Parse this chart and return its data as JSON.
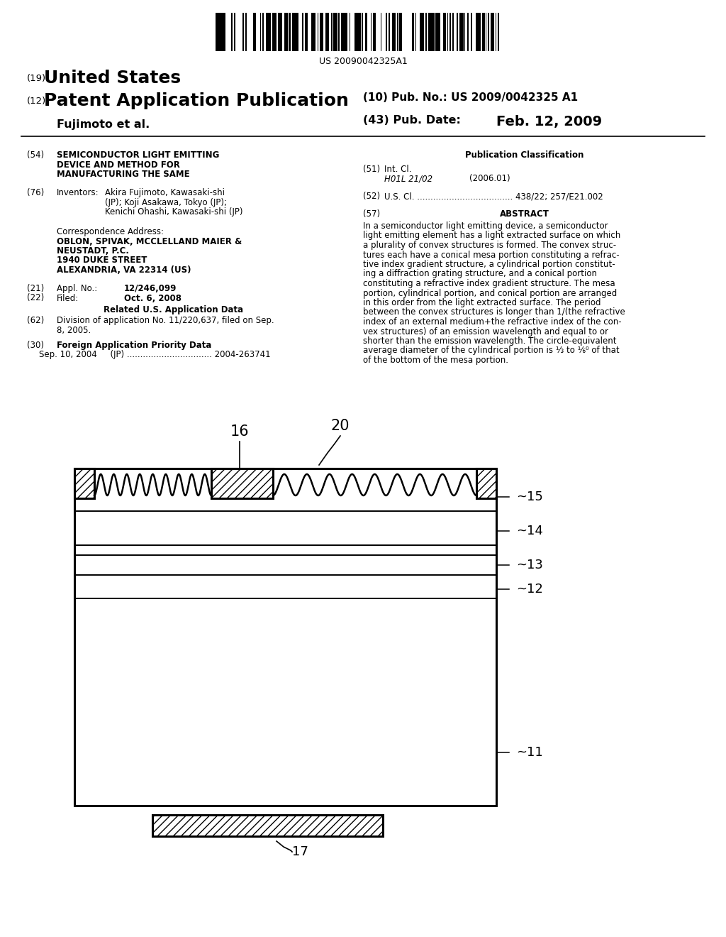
{
  "bg_color": "#ffffff",
  "barcode_text": "US 20090042325A1",
  "title_19": "(19)",
  "title_country": "United States",
  "title_12": "(12)",
  "title_type": "Patent Application Publication",
  "title_10": "(10) Pub. No.: US 2009/0042325 A1",
  "author": "Fujimoto et al.",
  "title_43": "(43) Pub. Date:",
  "pub_date": "Feb. 12, 2009",
  "field54_label": "(54)",
  "field54_text_1": "SEMICONDUCTOR LIGHT EMITTING",
  "field54_text_2": "DEVICE AND METHOD FOR",
  "field54_text_3": "MANUFACTURING THE SAME",
  "field76_label": "(76)",
  "field76_title": "Inventors:",
  "field76_line1": "Akira Fujimoto, Kawasaki-shi",
  "field76_line2": "(JP); Koji Asakawa, Tokyo (JP);",
  "field76_line3": "Kenichi Ohashi, Kawasaki-shi (JP)",
  "corr_title": "Correspondence Address:",
  "corr_line1": "OBLON, SPIVAK, MCCLELLAND MAIER &",
  "corr_line2": "NEUSTADT, P.C.",
  "corr_line3": "1940 DUKE STREET",
  "corr_line4": "ALEXANDRIA, VA 22314 (US)",
  "field21_label": "(21)",
  "field21_title": "Appl. No.:",
  "field21_value": "12/246,099",
  "field22_label": "(22)",
  "field22_title": "Filed:",
  "field22_value": "Oct. 6, 2008",
  "related_title": "Related U.S. Application Data",
  "field62_label": "(62)",
  "field62_line1": "Division of application No. 11/220,637, filed on Sep.",
  "field62_line2": "8, 2005.",
  "field30_label": "(30)",
  "field30_title": "Foreign Application Priority Data",
  "field30_text": "Sep. 10, 2004     (JP) ................................ 2004-263741",
  "pubclass_title": "Publication Classification",
  "field51_label": "(51)",
  "field51_title": "Int. Cl.",
  "field51_class": "H01L 21/02",
  "field51_year": "(2006.01)",
  "field52_label": "(52)",
  "field52_text": "U.S. Cl. .................................... 438/22; 257/E21.002",
  "field57_label": "(57)",
  "abstract_title": "ABSTRACT",
  "abstract_lines": [
    "In a semiconductor light emitting device, a semiconductor",
    "light emitting element has a light extracted surface on which",
    "a plurality of convex structures is formed. The convex struc-",
    "tures each have a conical mesa portion constituting a refrac-",
    "tive index gradient structure, a cylindrical portion constitut-",
    "ing a diffraction grating structure, and a conical portion",
    "constituting a refractive index gradient structure. The mesa",
    "portion, cylindrical portion, and conical portion are arranged",
    "in this order from the light extracted surface. The period",
    "between the convex structures is longer than 1/(the refractive",
    "index of an external medium+the refractive index of the con-",
    "vex structures) of an emission wavelength and equal to or",
    "shorter than the emission wavelength. The circle-equivalent",
    "average diameter of the cylindrical portion is ⅓ to ⅙⁰ of that",
    "of the bottom of the mesa portion."
  ],
  "diagram_label_16": "16",
  "diagram_label_20": "20",
  "diagram_label_15": "15",
  "diagram_label_14": "14",
  "diagram_label_13": "13",
  "diagram_label_12": "12",
  "diagram_label_11": "11",
  "diagram_label_17": "17"
}
